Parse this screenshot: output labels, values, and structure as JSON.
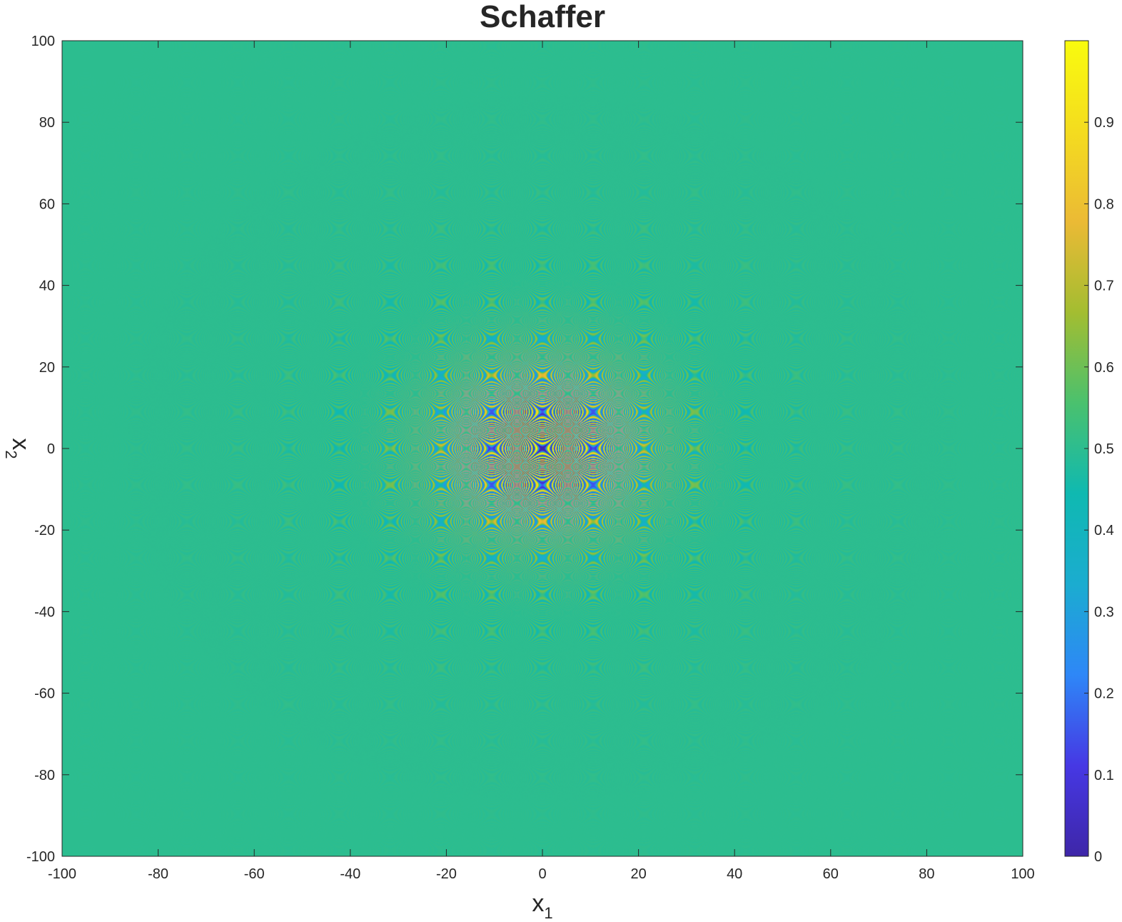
{
  "chart_data": {
    "type": "heatmap",
    "title": "Schaffer",
    "xlabel": "x",
    "xlabel_subscript": "1",
    "ylabel": "x",
    "ylabel_subscript": "2",
    "xlim": [
      -100,
      100
    ],
    "ylim": [
      -100,
      100
    ],
    "x_ticks": [
      "-100",
      "-80",
      "-60",
      "-40",
      "-20",
      "0",
      "20",
      "40",
      "60",
      "80",
      "100"
    ],
    "y_ticks": [
      "-100",
      "-80",
      "-60",
      "-40",
      "-20",
      "0",
      "20",
      "40",
      "60",
      "80",
      "100"
    ],
    "x_tick_values": [
      -100,
      -80,
      -60,
      -40,
      -20,
      0,
      20,
      40,
      60,
      80,
      100
    ],
    "y_tick_values": [
      -100,
      -80,
      -60,
      -40,
      -20,
      0,
      20,
      40,
      60,
      80,
      100
    ],
    "function": "0.5 + (sin^2(x1^2 - x2^2) - 0.5) / (1 + 0.001 (x1^2 + x2^2))^2",
    "colorbar": {
      "colormap": "parula",
      "clim": [
        0,
        1
      ],
      "ticks": [
        "0",
        "0.1",
        "0.2",
        "0.3",
        "0.4",
        "0.5",
        "0.6",
        "0.7",
        "0.8",
        "0.9"
      ],
      "tick_values": [
        0,
        0.1,
        0.2,
        0.3,
        0.4,
        0.5,
        0.6,
        0.7,
        0.8,
        0.9
      ],
      "stops": [
        "#3e26a8",
        "#4638e4",
        "#2e87f7",
        "#1bacd0",
        "#0fb9b1",
        "#4ac16e",
        "#a3bd31",
        "#ebba35",
        "#f4dc1f",
        "#f9fb0e"
      ]
    },
    "background_value": 0.5,
    "grid": false
  }
}
